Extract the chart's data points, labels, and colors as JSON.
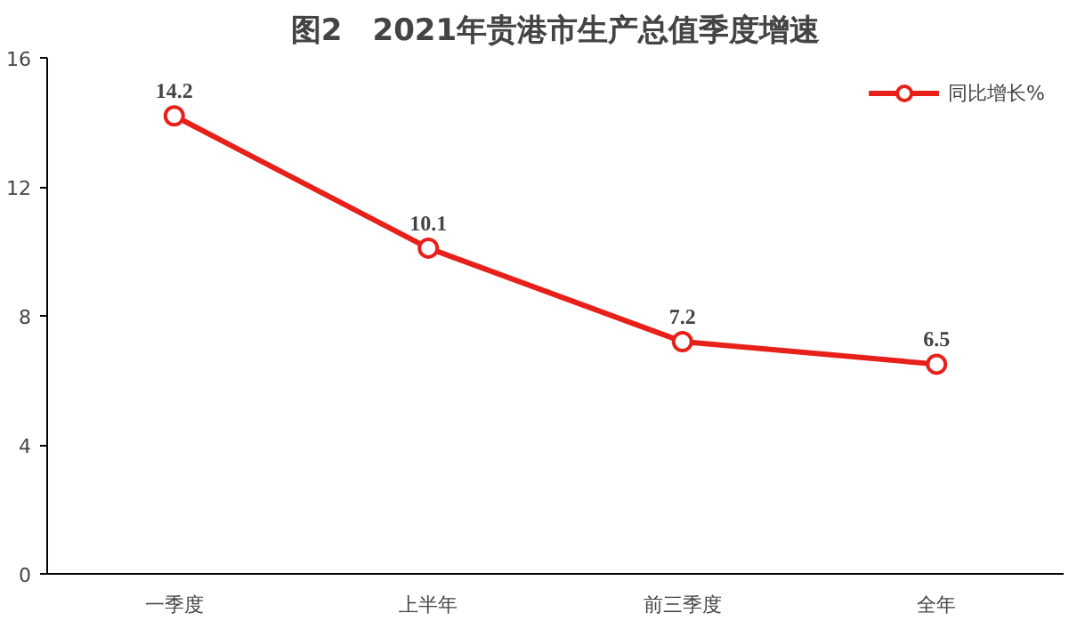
{
  "chart_data": {
    "type": "line",
    "title": "图2　2021年贵港市生产总值季度增速",
    "categories": [
      "一季度",
      "上半年",
      "前三季度",
      "全年"
    ],
    "series": [
      {
        "name": "同比增长%",
        "color": "#e8201a",
        "values": [
          14.2,
          10.1,
          7.2,
          6.5
        ]
      }
    ],
    "ylim": [
      0,
      16
    ],
    "yticks": [
      0,
      4,
      8,
      12,
      16
    ],
    "grid": false,
    "legend": "top right",
    "marker": "circle",
    "line_style": "solid",
    "data_labels": true
  }
}
